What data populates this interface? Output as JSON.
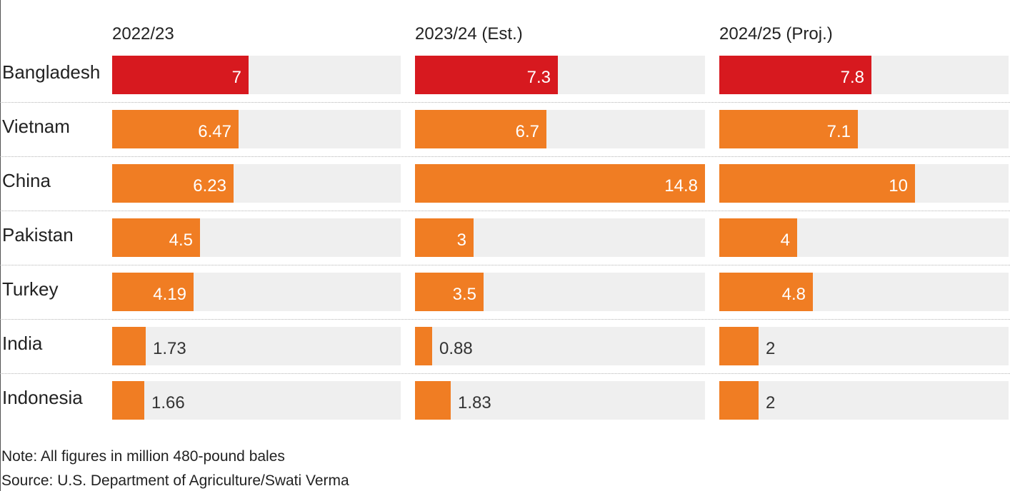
{
  "chart_data": {
    "type": "bar",
    "orientation": "horizontal",
    "layout": "small-multiples",
    "categories": [
      "Bangladesh",
      "Vietnam",
      "China",
      "Pakistan",
      "Turkey",
      "India",
      "Indonesia"
    ],
    "series": [
      {
        "name": "2022/23",
        "values": [
          7,
          6.47,
          6.23,
          4.5,
          4.19,
          1.73,
          1.66
        ],
        "labels": [
          "7",
          "6.47",
          "6.23",
          "4.5",
          "4.19",
          "1.73",
          "1.66"
        ]
      },
      {
        "name": "2023/24 (Est.)",
        "values": [
          7.3,
          6.7,
          14.8,
          3,
          3.5,
          0.88,
          1.83
        ],
        "labels": [
          "7.3",
          "6.7",
          "14.8",
          "3",
          "3.5",
          "0.88",
          "1.83"
        ]
      },
      {
        "name": "2024/25 (Proj.)",
        "values": [
          7.8,
          7.1,
          10,
          4,
          4.8,
          2,
          2
        ],
        "labels": [
          "7.8",
          "7.1",
          "10",
          "4",
          "4.8",
          "2",
          "2"
        ]
      }
    ],
    "xlim": [
      0,
      14.8
    ],
    "grid": false,
    "legend": "none",
    "colors": {
      "highlight": "#d7191f",
      "bar": "#f07d23",
      "track": "#efefef"
    },
    "highlight_category": "Bangladesh"
  },
  "footer": {
    "note": "Note: All figures in million 480-pound bales",
    "source": "Source: U.S. Department of Agriculture/Swati Verma"
  }
}
